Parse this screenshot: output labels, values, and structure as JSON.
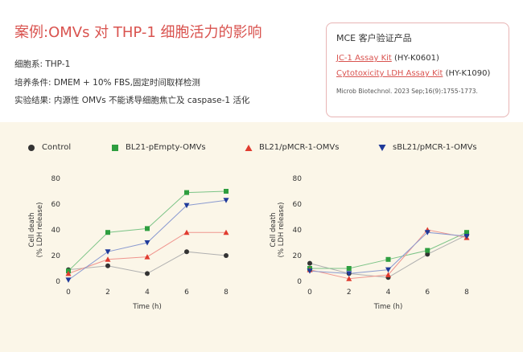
{
  "header": {
    "title": "案例:OMVs 对 THP-1 细胞活力的影响",
    "cell_line": "细胞系: THP-1",
    "culture": "培养条件: DMEM + 10% FBS,固定时间取样检测",
    "result": "实验结果: 内源性 OMVs 不能诱导细胞焦亡及 caspase-1 活化"
  },
  "card": {
    "title": "MCE 客户验证产品",
    "product1_name": "JC-1 Assay Kit",
    "product1_code": "(HY-K0601)",
    "product2_name": "Cytotoxicity LDH Assay Kit",
    "product2_code": "(HY-K1090)",
    "citation": "Microb Biotechnol. 2023 Sep;16(9):1755-1773."
  },
  "colors": {
    "title_red": "#d9534f",
    "panel_bg": "#fbf6e8"
  },
  "legend": [
    {
      "label": "Control",
      "marker": "circle",
      "color": "#333333"
    },
    {
      "label": "BL21-pEmpty-OMVs",
      "marker": "square",
      "color": "#2e9e3f"
    },
    {
      "label": "BL21/pMCR-1-OMVs",
      "marker": "triangle-up",
      "color": "#e03b2f"
    },
    {
      "label": "sBL21/pMCR-1-OMVs",
      "marker": "triangle-down",
      "color": "#1f3a9a"
    }
  ],
  "chart_data": [
    {
      "type": "line",
      "xlabel": "Time (h)",
      "ylabel": "Cell death\n(% LDH release)",
      "x": [
        0,
        2,
        4,
        6,
        8
      ],
      "xlim": [
        0,
        8
      ],
      "ylim": [
        0,
        80
      ],
      "xticks": [
        0,
        2,
        4,
        6,
        8
      ],
      "yticks": [
        0,
        20,
        40,
        60,
        80
      ],
      "series": [
        {
          "name": "Control",
          "color": "#333333",
          "marker": "circle",
          "line": "#b0b0b0",
          "values": [
            9,
            12,
            6,
            23,
            20
          ]
        },
        {
          "name": "BL21-pEmpty-OMVs",
          "color": "#2e9e3f",
          "marker": "square",
          "line": "#7cc487",
          "values": [
            8,
            38,
            41,
            69,
            70
          ]
        },
        {
          "name": "BL21/pMCR-1-OMVs",
          "color": "#e03b2f",
          "marker": "triangle-up",
          "line": "#f0958e",
          "values": [
            6,
            17,
            19,
            38,
            38
          ]
        },
        {
          "name": "sBL21/pMCR-1-OMVs",
          "color": "#1f3a9a",
          "marker": "triangle-down",
          "line": "#8a9ad0",
          "values": [
            1,
            23,
            30,
            59,
            63
          ]
        }
      ]
    },
    {
      "type": "line",
      "xlabel": "Time (h)",
      "ylabel": "Cell death\n(% LDH release)",
      "x": [
        0,
        2,
        4,
        6,
        8
      ],
      "xlim": [
        0,
        8
      ],
      "ylim": [
        0,
        80
      ],
      "xticks": [
        0,
        2,
        4,
        6,
        8
      ],
      "yticks": [
        0,
        20,
        40,
        60,
        80
      ],
      "series": [
        {
          "name": "Control",
          "color": "#333333",
          "marker": "circle",
          "line": "#b0b0b0",
          "values": [
            14,
            6,
            3,
            21,
            36
          ]
        },
        {
          "name": "BL21-pEmpty-OMVs",
          "color": "#2e9e3f",
          "marker": "square",
          "line": "#7cc487",
          "values": [
            10,
            10,
            17,
            24,
            38
          ]
        },
        {
          "name": "BL21/pMCR-1-OMVs",
          "color": "#e03b2f",
          "marker": "triangle-up",
          "line": "#f0958e",
          "values": [
            9,
            2,
            5,
            40,
            34
          ]
        },
        {
          "name": "sBL21/pMCR-1-OMVs",
          "color": "#1f3a9a",
          "marker": "triangle-down",
          "line": "#8a9ad0",
          "values": [
            8,
            6,
            9,
            38,
            35
          ]
        }
      ]
    }
  ]
}
